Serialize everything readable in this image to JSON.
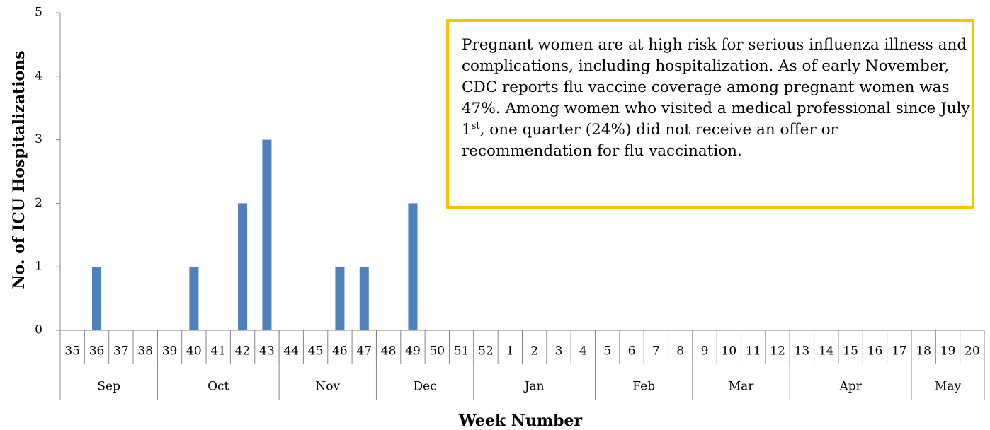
{
  "chart_data": {
    "type": "bar",
    "y_label": "No. of ICU Hospitalizations",
    "x_label": "Week Number",
    "categories": [
      "35",
      "36",
      "37",
      "38",
      "39",
      "40",
      "41",
      "42",
      "43",
      "44",
      "45",
      "46",
      "47",
      "48",
      "49",
      "50",
      "51",
      "52",
      "1",
      "2",
      "3",
      "4",
      "5",
      "6",
      "7",
      "8",
      "9",
      "10",
      "11",
      "12",
      "13",
      "14",
      "15",
      "16",
      "17",
      "18",
      "19",
      "20"
    ],
    "values": [
      0,
      1,
      0,
      0,
      0,
      1,
      0,
      2,
      3,
      0,
      0,
      1,
      1,
      0,
      2,
      0,
      0,
      0,
      0,
      0,
      0,
      0,
      0,
      0,
      0,
      0,
      0,
      0,
      0,
      0,
      0,
      0,
      0,
      0,
      0,
      0,
      0,
      0
    ],
    "color": "#4f81bd",
    "months": [
      {
        "label": "Sep",
        "span": 4
      },
      {
        "label": "Oct",
        "span": 5
      },
      {
        "label": "Nov",
        "span": 4
      },
      {
        "label": "Dec",
        "span": 4
      },
      {
        "label": "Jan",
        "span": 5
      },
      {
        "label": "Feb",
        "span": 4
      },
      {
        "label": "Mar",
        "span": 4
      },
      {
        "label": "Apr",
        "span": 5
      },
      {
        "label": "May",
        "span": 3
      }
    ],
    "ylim": [
      0,
      5
    ],
    "yticks": [
      0,
      1,
      2,
      3,
      4,
      5
    ],
    "grid": false,
    "annotation": [
      "Pregnant women are at high risk for serious influenza illness and complications, including hospitalization. As of early November, CDC reports flu vaccine coverage among pregnant women was 47%. Among women who visited a medical professional since July 1",
      "st",
      ", one quarter (24%) did not receive an offer or recommendation for flu vaccination."
    ],
    "annotation_border_color": "#ffc000"
  }
}
